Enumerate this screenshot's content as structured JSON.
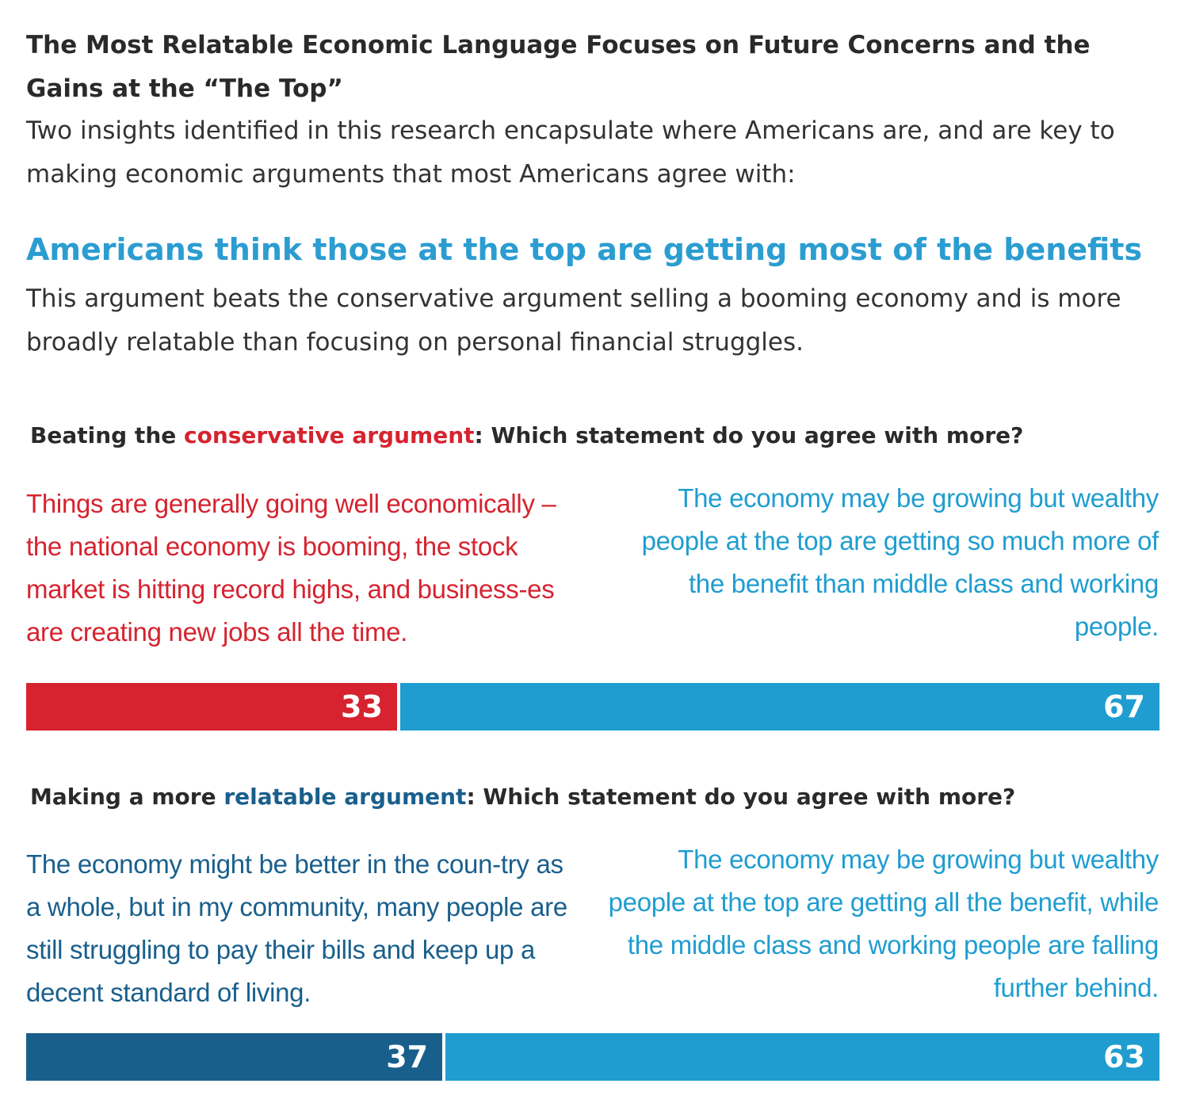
{
  "title": "The Most Relatable Economic Language Focuses on Future Concerns and the Gains at the “The Top”",
  "intro": "Two insights identified in this research encapsulate where Americans are, and are key to making economic arguments that most Americans agree with:",
  "headline": "Americans think those at the top are getting most of the benefits",
  "body": "This argument beats the conservative argument selling a booming economy and is more broadly relatable than focusing on personal financial struggles.",
  "colors": {
    "red": "#d6232f",
    "light_blue": "#1f9dd0",
    "dark_blue": "#195f8c",
    "headline_blue": "#2b9dd1"
  },
  "chart_data": [
    {
      "type": "bar",
      "orientation": "horizontal-stacked",
      "heading": {
        "prefix": "Beating the ",
        "highlight": "conservative argument",
        "suffix": ": Which statement do you agree with more?"
      },
      "left_statement": "Things are generally going well economically – the national economy is booming, the stock market is hitting record highs, and business-es are creating new jobs all the time.",
      "right_statement": "The economy may be growing but wealthy people at the top are getting so much more of the benefit than middle class and working people.",
      "values": [
        33,
        67
      ],
      "value_labels": [
        "33",
        "67"
      ],
      "colors": [
        "#d6232f",
        "#1f9dd0"
      ]
    },
    {
      "type": "bar",
      "orientation": "horizontal-stacked",
      "heading": {
        "prefix": "Making a more ",
        "highlight": "relatable argument",
        "suffix": ": Which statement do you agree with more?"
      },
      "left_statement": "The economy might be better in the coun-try as a whole, but in my community, many people are still struggling to pay their bills and keep up a decent standard of living.",
      "right_statement": "The economy may be growing but wealthy people at the top are getting all the benefit, while the middle class and working people are falling further behind.",
      "values": [
        37,
        63
      ],
      "value_labels": [
        "37",
        "63"
      ],
      "colors": [
        "#195f8c",
        "#1f9dd0"
      ]
    }
  ]
}
